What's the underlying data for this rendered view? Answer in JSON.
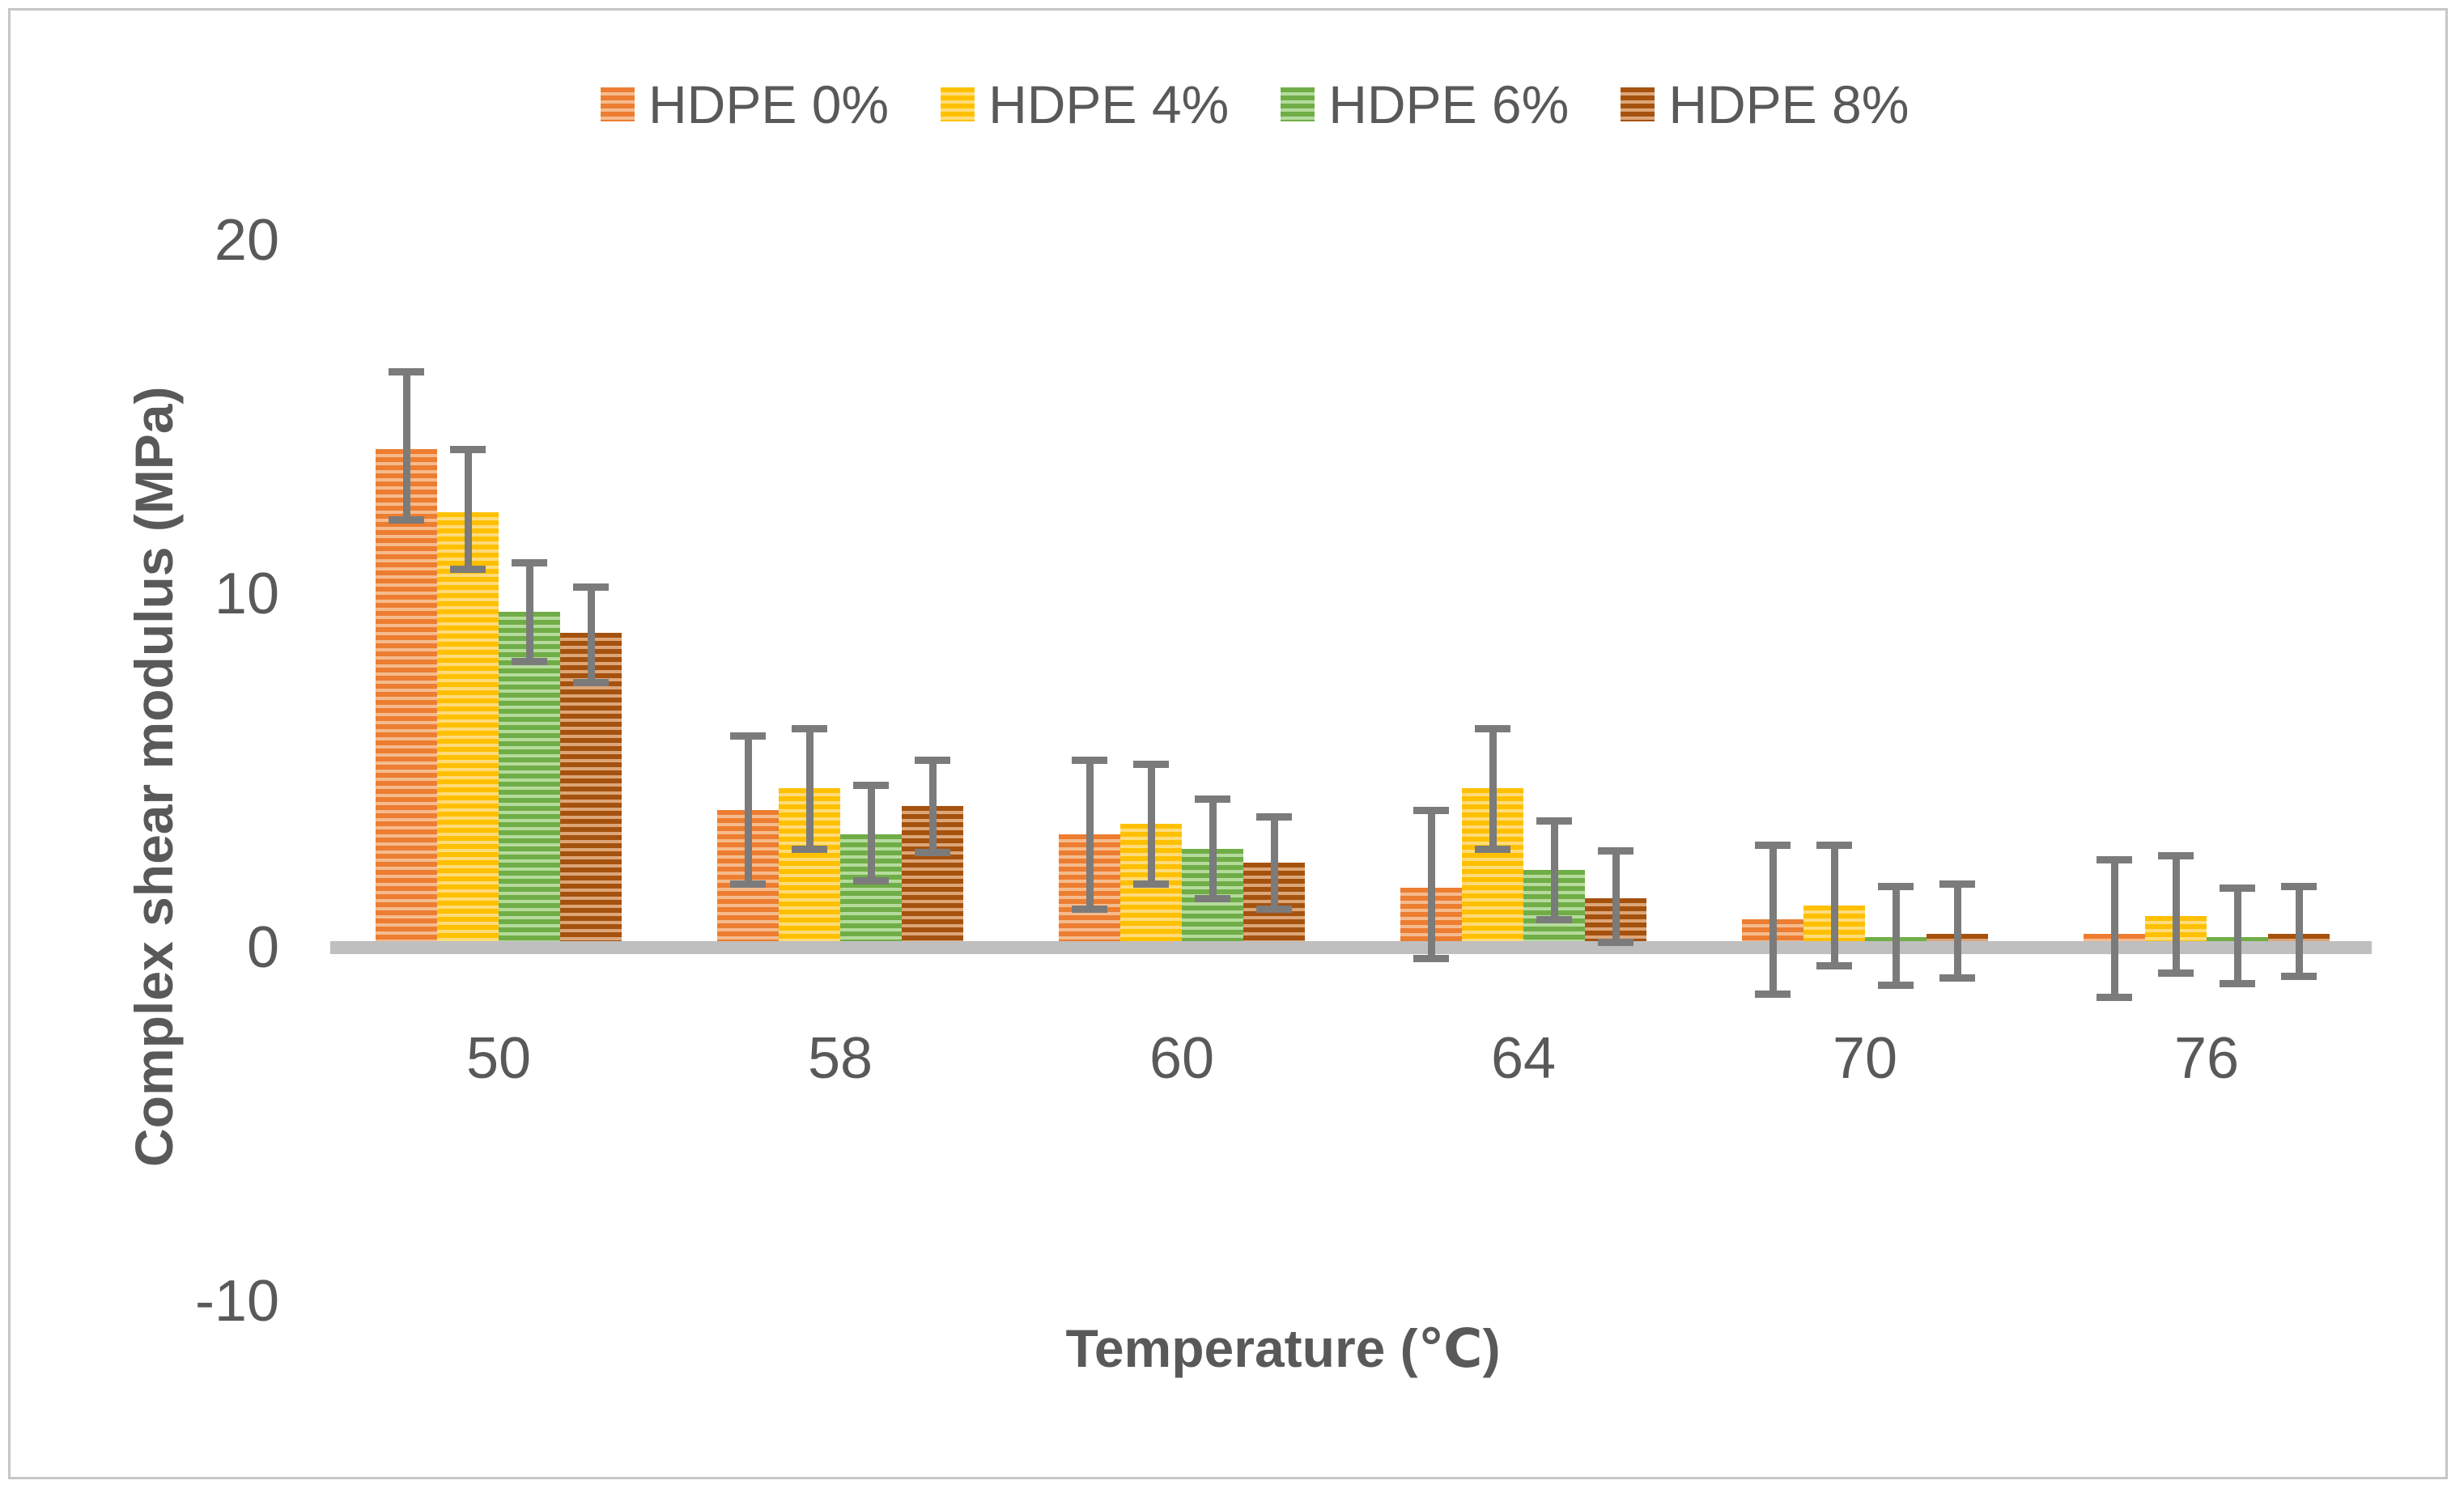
{
  "chart_data": {
    "type": "bar",
    "title": "",
    "xlabel": "Temperature (℃)",
    "ylabel": "Complex shear modulus (MPa)",
    "categories": [
      "50",
      "58",
      "60",
      "64",
      "70",
      "76"
    ],
    "y_ticks": [
      20,
      10,
      0,
      -10
    ],
    "ylim": [
      -10,
      20
    ],
    "grid": false,
    "legend_position": "top-center",
    "bar_fill_style": "horizontal-stripes",
    "error_bars": true,
    "series": [
      {
        "name": "HDPE 0%",
        "color": "#ED7D31",
        "stripe_light": "#F5BB8D",
        "values": [
          14.1,
          3.9,
          3.2,
          1.7,
          0.8,
          0.4
        ],
        "error_up": [
          2.2,
          2.1,
          2.1,
          2.2,
          2.1,
          2.1
        ],
        "error_down": [
          2.0,
          2.1,
          2.1,
          2.0,
          2.1,
          1.8
        ]
      },
      {
        "name": "HDPE 4%",
        "color": "#FFC000",
        "stripe_light": "#FFDC7A",
        "values": [
          12.3,
          4.5,
          3.5,
          4.5,
          1.2,
          0.9
        ],
        "error_up": [
          1.8,
          1.7,
          1.7,
          1.7,
          1.7,
          1.7
        ],
        "error_down": [
          1.6,
          1.7,
          1.7,
          1.7,
          1.7,
          1.6
        ]
      },
      {
        "name": "HDPE 6%",
        "color": "#70AD47",
        "stripe_light": "#B5DB9C",
        "values": [
          9.5,
          3.2,
          2.8,
          2.2,
          0.3,
          0.3
        ],
        "error_up": [
          1.4,
          1.4,
          1.4,
          1.4,
          1.45,
          1.4
        ],
        "error_down": [
          1.4,
          1.3,
          1.4,
          1.4,
          1.35,
          1.3
        ]
      },
      {
        "name": "HDPE 8%",
        "color": "#A5520F",
        "stripe_light": "#DDA678",
        "values": [
          8.9,
          4.0,
          2.4,
          1.4,
          0.4,
          0.4
        ],
        "error_up": [
          1.3,
          1.3,
          1.3,
          1.35,
          1.4,
          1.35
        ],
        "error_down": [
          1.4,
          1.3,
          1.3,
          1.25,
          1.25,
          1.2
        ]
      }
    ]
  },
  "colors": {
    "text": "#595959",
    "error_bar": "#7B7B7B",
    "baseline": "#BFBFBF",
    "border": "#C6C6C6"
  }
}
